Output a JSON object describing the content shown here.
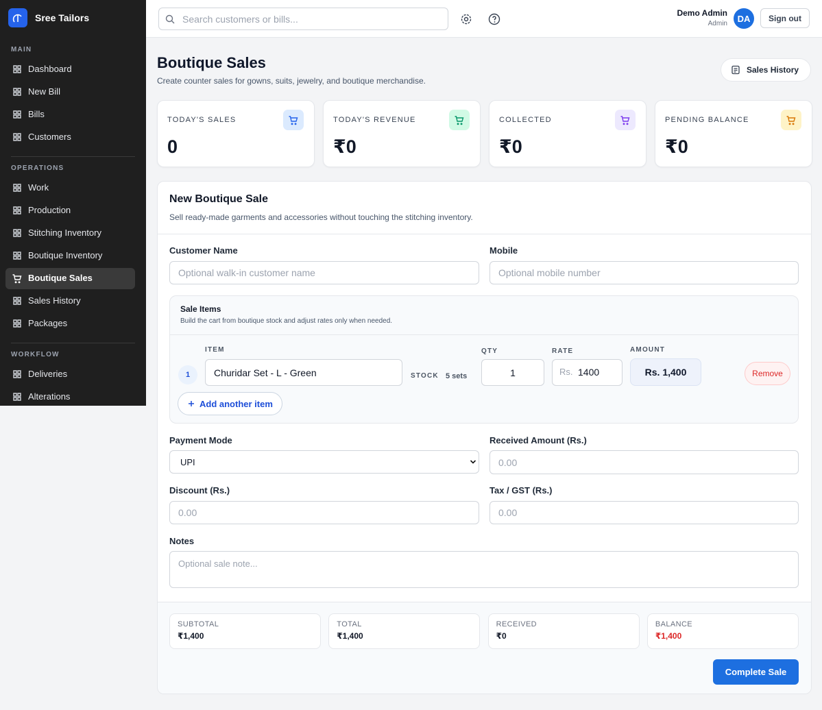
{
  "sidebar": {
    "brand": "Sree Tailors",
    "sections": [
      {
        "title": "MAIN",
        "items": [
          {
            "label": "Dashboard"
          },
          {
            "label": "New Bill"
          },
          {
            "label": "Bills"
          },
          {
            "label": "Customers"
          }
        ]
      },
      {
        "title": "OPERATIONS",
        "items": [
          {
            "label": "Work"
          },
          {
            "label": "Production"
          },
          {
            "label": "Stitching Inventory"
          },
          {
            "label": "Boutique Inventory"
          },
          {
            "label": "Boutique Sales",
            "active": true
          },
          {
            "label": "Sales History"
          },
          {
            "label": "Packages"
          }
        ]
      },
      {
        "title": "WORKFLOW",
        "items": [
          {
            "label": "Deliveries"
          },
          {
            "label": "Alterations"
          }
        ]
      }
    ]
  },
  "topbar": {
    "search_placeholder": "Search customers or bills...",
    "user_name": "Demo Admin",
    "user_role": "Admin",
    "avatar": "DA",
    "sign_out": "Sign out"
  },
  "header": {
    "title": "Boutique Sales",
    "subtitle": "Create counter sales for gowns, suits, jewelry, and boutique merchandise.",
    "history_button": "Sales History"
  },
  "stats": [
    {
      "label": "TODAY'S SALES",
      "value": "0"
    },
    {
      "label": "TODAY'S REVENUE",
      "value": "₹0"
    },
    {
      "label": "COLLECTED",
      "value": "₹0"
    },
    {
      "label": "PENDING BALANCE",
      "value": "₹0"
    }
  ],
  "form": {
    "title": "New Boutique Sale",
    "description": "Sell ready-made garments and accessories without touching the stitching inventory.",
    "customer_name": {
      "label": "Customer Name",
      "placeholder": "Optional walk-in customer name"
    },
    "mobile": {
      "label": "Mobile",
      "placeholder": "Optional mobile number"
    },
    "sale_items": {
      "title": "Sale Items",
      "description": "Build the cart from boutique stock and adjust rates only when needed.",
      "rows": [
        {
          "index": "1",
          "item_label": "ITEM",
          "item": "Churidar Set - L - Green",
          "stock_label": "STOCK",
          "stock": "5 sets",
          "qty_label": "QTY",
          "qty": "1",
          "rate_label": "RATE",
          "rate_prefix": "Rs.",
          "rate": "1400",
          "amount_label": "AMOUNT",
          "amount": "Rs. 1,400",
          "remove": "Remove"
        }
      ],
      "add_button": "Add another item"
    },
    "payment_mode": {
      "label": "Payment Mode",
      "value": "UPI"
    },
    "received": {
      "label": "Received Amount (Rs.)",
      "placeholder": "0.00"
    },
    "discount": {
      "label": "Discount (Rs.)",
      "placeholder": "0.00"
    },
    "tax": {
      "label": "Tax / GST (Rs.)",
      "placeholder": "0.00"
    },
    "notes": {
      "label": "Notes",
      "placeholder": "Optional sale note..."
    }
  },
  "summary": [
    {
      "label": "SUBTOTAL",
      "value": "₹1,400"
    },
    {
      "label": "TOTAL",
      "value": "₹1,400"
    },
    {
      "label": "RECEIVED",
      "value": "₹0"
    },
    {
      "label": "BALANCE",
      "value": "₹1,400"
    }
  ],
  "submit": "Complete Sale"
}
